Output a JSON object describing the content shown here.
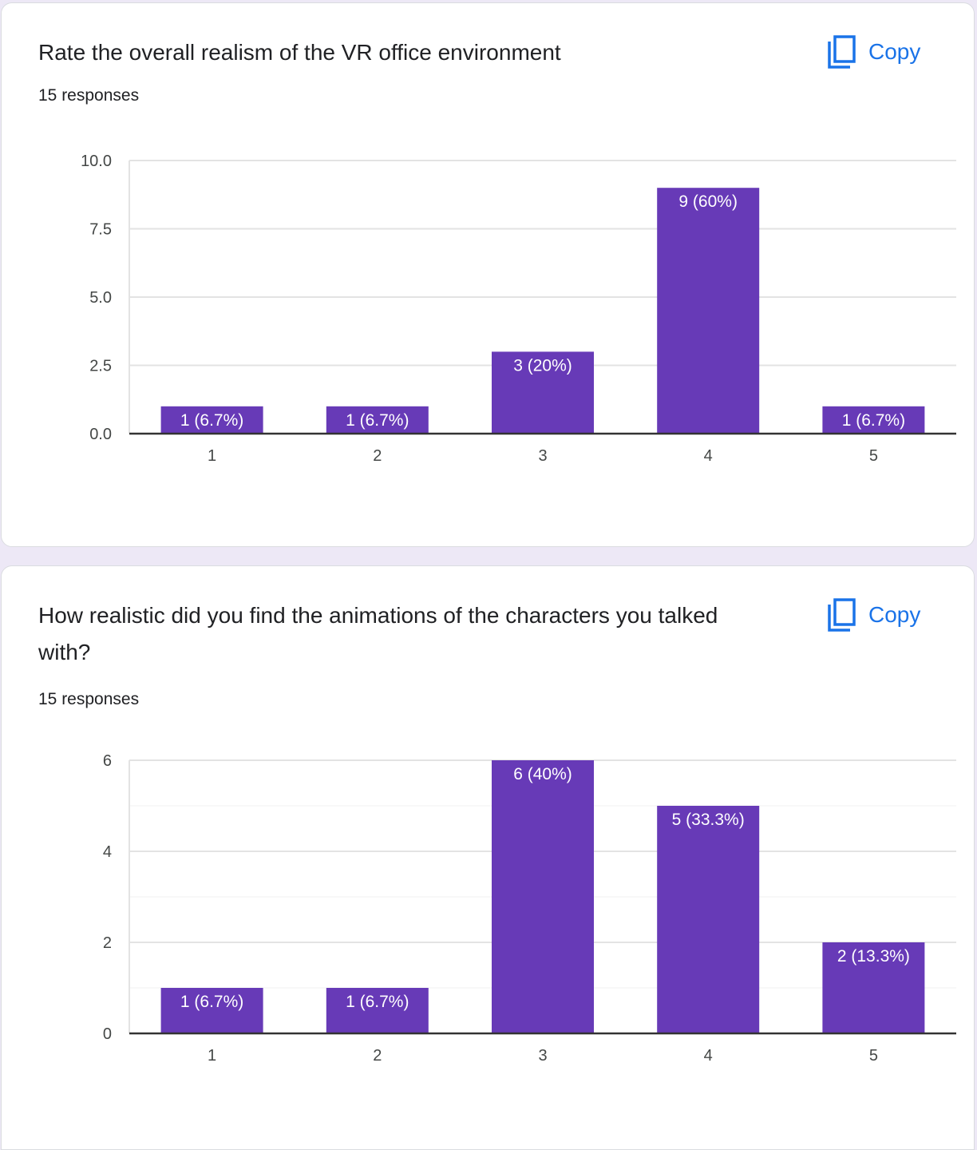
{
  "questions": [
    {
      "title": "Rate the overall realism of the VR office environment",
      "responses": "15 responses",
      "copy_label": "Copy"
    },
    {
      "title": "How realistic did you find the animations of the characters you talked with?",
      "responses": "15 responses",
      "copy_label": "Copy"
    }
  ],
  "colors": {
    "bar": "#673ab7",
    "accent": "#1a73e8",
    "background": "#ede8f6"
  },
  "chart_data": [
    {
      "type": "bar",
      "categories": [
        "1",
        "2",
        "3",
        "4",
        "5"
      ],
      "values": [
        1,
        1,
        3,
        9,
        1
      ],
      "data_labels": [
        "1 (6.7%)",
        "1 (6.7%)",
        "3 (20%)",
        "9 (60%)",
        "1 (6.7%)"
      ],
      "ylim": [
        0,
        10
      ],
      "yticks": [
        "0.0",
        "2.5",
        "5.0",
        "7.5",
        "10.0"
      ],
      "grid": true
    },
    {
      "type": "bar",
      "categories": [
        "1",
        "2",
        "3",
        "4",
        "5"
      ],
      "values": [
        1,
        1,
        6,
        5,
        2
      ],
      "data_labels": [
        "1 (6.7%)",
        "1 (6.7%)",
        "6 (40%)",
        "5 (33.3%)",
        "2 (13.3%)"
      ],
      "ylim": [
        0,
        6
      ],
      "yticks": [
        "0",
        "2",
        "4",
        "6"
      ],
      "grid": true
    }
  ]
}
